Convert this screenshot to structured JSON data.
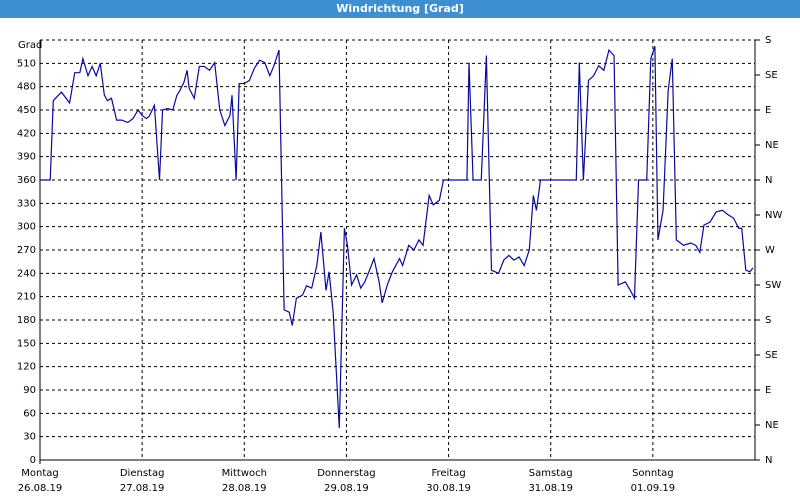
{
  "window_title": "Windrichtung [Grad]",
  "chart_data": {
    "type": "line",
    "ylabel": "Grad",
    "ylim": [
      0,
      540
    ],
    "yticks": [
      0,
      30,
      60,
      90,
      120,
      150,
      180,
      210,
      240,
      270,
      300,
      330,
      360,
      390,
      420,
      450,
      480,
      510
    ],
    "y2lim": [
      0,
      540
    ],
    "y2ticks": [
      {
        "value": 0,
        "label": "N"
      },
      {
        "value": 45,
        "label": "NE"
      },
      {
        "value": 90,
        "label": "E"
      },
      {
        "value": 135,
        "label": "SE"
      },
      {
        "value": 180,
        "label": "S"
      },
      {
        "value": 225,
        "label": "SW"
      },
      {
        "value": 270,
        "label": "W"
      },
      {
        "value": 315,
        "label": "NW"
      },
      {
        "value": 360,
        "label": "N"
      },
      {
        "value": 405,
        "label": "NE"
      },
      {
        "value": 450,
        "label": "E"
      },
      {
        "value": 495,
        "label": "SE"
      },
      {
        "value": 540,
        "label": "S"
      }
    ],
    "xlim": [
      0,
      7
    ],
    "xticks": [
      {
        "value": 0,
        "label": "Montag",
        "date": "26.08.19"
      },
      {
        "value": 1,
        "label": "Dienstag",
        "date": "27.08.19"
      },
      {
        "value": 2,
        "label": "Mittwoch",
        "date": "28.08.19"
      },
      {
        "value": 3,
        "label": "Donnerstag",
        "date": "29.08.19"
      },
      {
        "value": 4,
        "label": "Freitag",
        "date": "30.08.19"
      },
      {
        "value": 5,
        "label": "Samstag",
        "date": "31.08.19"
      },
      {
        "value": 6,
        "label": "Sonntag",
        "date": "01.09.19"
      }
    ],
    "grid": true,
    "series": [
      {
        "color": "#0a0a9a",
        "x": [
          0,
          0.1,
          0.13,
          0.21,
          0.29,
          0.34,
          0.39,
          0.42,
          0.47,
          0.51,
          0.55,
          0.59,
          0.63,
          0.66,
          0.7,
          0.75,
          0.8,
          0.86,
          0.91,
          0.96,
          1.0,
          1.04,
          1.07,
          1.12,
          1.17,
          1.2,
          1.25,
          1.3,
          1.34,
          1.37,
          1.41,
          1.44,
          1.46,
          1.51,
          1.56,
          1.61,
          1.66,
          1.71,
          1.76,
          1.81,
          1.86,
          1.88,
          1.92,
          1.95,
          2.0,
          2.05,
          2.1,
          2.15,
          2.2,
          2.25,
          2.29,
          2.34,
          2.39,
          2.44,
          2.47,
          2.51,
          2.57,
          2.61,
          2.66,
          2.71,
          2.75,
          2.8,
          2.83,
          2.87,
          2.93,
          2.98,
          3.01,
          3.05,
          3.1,
          3.14,
          3.18,
          3.22,
          3.27,
          3.32,
          3.35,
          3.4,
          3.45,
          3.52,
          3.55,
          3.61,
          3.66,
          3.71,
          3.75,
          3.81,
          3.85,
          3.91,
          3.95,
          4.1,
          4.18,
          4.2,
          4.24,
          4.32,
          4.37,
          4.42,
          4.49,
          4.54,
          4.59,
          4.64,
          4.69,
          4.74,
          4.79,
          4.83,
          4.86,
          4.9,
          5.08,
          5.25,
          5.28,
          5.32,
          5.37,
          5.42,
          5.47,
          5.52,
          5.57,
          5.62,
          5.66,
          5.73,
          5.78,
          5.82,
          5.86,
          5.94,
          5.98,
          6.02,
          6.05,
          6.1,
          6.15,
          6.19,
          6.23,
          6.3,
          6.37,
          6.42,
          6.46,
          6.5,
          6.56,
          6.62,
          6.68,
          6.74,
          6.79,
          6.84,
          6.87,
          6.91,
          6.95,
          6.98
        ],
        "values": [
          360,
          360,
          462,
          473,
          459,
          498,
          498,
          516,
          494,
          506,
          494,
          510,
          469,
          462,
          465,
          437,
          437,
          434,
          439,
          450,
          443,
          439,
          442,
          456,
          360,
          450,
          452,
          450,
          469,
          475,
          486,
          501,
          478,
          465,
          506,
          506,
          501,
          511,
          450,
          430,
          443,
          469,
          360,
          484,
          484,
          488,
          504,
          514,
          511,
          494,
          507,
          527,
          193,
          190,
          173,
          208,
          212,
          224,
          221,
          250,
          293,
          218,
          242,
          190,
          41,
          298,
          276,
          225,
          238,
          221,
          229,
          242,
          259,
          229,
          202,
          225,
          242,
          259,
          250,
          276,
          270,
          283,
          276,
          340,
          328,
          334,
          360,
          360,
          360,
          511,
          360,
          360,
          520,
          244,
          240,
          257,
          263,
          257,
          261,
          250,
          270,
          340,
          321,
          360,
          360,
          360,
          511,
          360,
          488,
          494,
          507,
          501,
          527,
          520,
          225,
          229,
          218,
          208,
          360,
          360,
          516,
          532,
          283,
          321,
          475,
          516,
          283,
          276,
          279,
          276,
          267,
          302,
          306,
          319,
          321,
          315,
          311,
          298,
          298,
          244,
          242,
          247
        ]
      }
    ]
  }
}
